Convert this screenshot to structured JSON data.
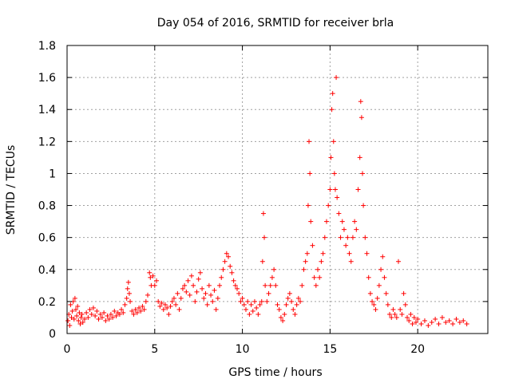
{
  "chart_data": {
    "type": "scatter",
    "title": "Day 054 of 2016, SRMTID for receiver brla",
    "xlabel": "GPS time / hours",
    "ylabel": "SRMTID / TECUs",
    "xlim": [
      0,
      24
    ],
    "ylim": [
      0,
      1.8
    ],
    "xticks": [
      0,
      5,
      10,
      15,
      20
    ],
    "xtick_labels": [
      "0",
      "5",
      "10",
      "15",
      "20"
    ],
    "yticks": [
      0,
      0.2,
      0.4,
      0.6,
      0.8,
      1.0,
      1.2,
      1.4,
      1.6,
      1.8
    ],
    "ytick_labels": [
      "0",
      "0.2",
      "0.4",
      "0.6",
      "0.8",
      "1",
      "1.2",
      "1.4",
      "1.6",
      "1.8"
    ],
    "grid": true,
    "marker": "+",
    "marker_color": "#ff0000",
    "series": [
      {
        "name": "SRMTID",
        "points": [
          [
            0.05,
            0.08
          ],
          [
            0.1,
            0.12
          ],
          [
            0.15,
            0.05
          ],
          [
            0.2,
            0.18
          ],
          [
            0.25,
            0.1
          ],
          [
            0.3,
            0.14
          ],
          [
            0.35,
            0.2
          ],
          [
            0.4,
            0.09
          ],
          [
            0.45,
            0.22
          ],
          [
            0.5,
            0.15
          ],
          [
            0.55,
            0.11
          ],
          [
            0.6,
            0.17
          ],
          [
            0.65,
            0.08
          ],
          [
            0.7,
            0.13
          ],
          [
            0.75,
            0.06
          ],
          [
            0.8,
            0.1
          ],
          [
            0.85,
            0.12
          ],
          [
            0.9,
            0.07
          ],
          [
            1.0,
            0.09
          ],
          [
            1.1,
            0.13
          ],
          [
            1.2,
            0.1
          ],
          [
            1.3,
            0.15
          ],
          [
            1.4,
            0.12
          ],
          [
            1.5,
            0.16
          ],
          [
            1.6,
            0.11
          ],
          [
            1.7,
            0.14
          ],
          [
            1.8,
            0.09
          ],
          [
            1.9,
            0.12
          ],
          [
            2.0,
            0.1
          ],
          [
            2.1,
            0.13
          ],
          [
            2.2,
            0.08
          ],
          [
            2.3,
            0.11
          ],
          [
            2.4,
            0.09
          ],
          [
            2.5,
            0.12
          ],
          [
            2.6,
            0.1
          ],
          [
            2.7,
            0.14
          ],
          [
            2.8,
            0.11
          ],
          [
            2.9,
            0.13
          ],
          [
            3.0,
            0.12
          ],
          [
            3.1,
            0.15
          ],
          [
            3.2,
            0.13
          ],
          [
            3.3,
            0.18
          ],
          [
            3.4,
            0.22
          ],
          [
            3.45,
            0.28
          ],
          [
            3.5,
            0.32
          ],
          [
            3.55,
            0.25
          ],
          [
            3.6,
            0.2
          ],
          [
            3.7,
            0.14
          ],
          [
            3.8,
            0.12
          ],
          [
            3.9,
            0.15
          ],
          [
            4.0,
            0.13
          ],
          [
            4.1,
            0.16
          ],
          [
            4.2,
            0.14
          ],
          [
            4.3,
            0.17
          ],
          [
            4.4,
            0.15
          ],
          [
            4.5,
            0.2
          ],
          [
            4.6,
            0.24
          ],
          [
            4.7,
            0.38
          ],
          [
            4.75,
            0.35
          ],
          [
            4.8,
            0.3
          ],
          [
            4.9,
            0.36
          ],
          [
            5.0,
            0.3
          ],
          [
            5.1,
            0.33
          ],
          [
            5.2,
            0.2
          ],
          [
            5.3,
            0.17
          ],
          [
            5.4,
            0.19
          ],
          [
            5.5,
            0.15
          ],
          [
            5.6,
            0.18
          ],
          [
            5.7,
            0.16
          ],
          [
            5.8,
            0.12
          ],
          [
            5.9,
            0.17
          ],
          [
            6.0,
            0.2
          ],
          [
            6.1,
            0.22
          ],
          [
            6.2,
            0.18
          ],
          [
            6.3,
            0.25
          ],
          [
            6.4,
            0.15
          ],
          [
            6.5,
            0.22
          ],
          [
            6.6,
            0.28
          ],
          [
            6.7,
            0.3
          ],
          [
            6.8,
            0.26
          ],
          [
            6.9,
            0.33
          ],
          [
            7.0,
            0.24
          ],
          [
            7.1,
            0.36
          ],
          [
            7.2,
            0.3
          ],
          [
            7.3,
            0.2
          ],
          [
            7.4,
            0.26
          ],
          [
            7.5,
            0.34
          ],
          [
            7.6,
            0.38
          ],
          [
            7.7,
            0.28
          ],
          [
            7.8,
            0.22
          ],
          [
            7.9,
            0.25
          ],
          [
            8.0,
            0.18
          ],
          [
            8.1,
            0.3
          ],
          [
            8.2,
            0.24
          ],
          [
            8.3,
            0.2
          ],
          [
            8.4,
            0.27
          ],
          [
            8.5,
            0.15
          ],
          [
            8.6,
            0.22
          ],
          [
            8.7,
            0.3
          ],
          [
            8.8,
            0.35
          ],
          [
            8.9,
            0.4
          ],
          [
            9.0,
            0.45
          ],
          [
            9.1,
            0.5
          ],
          [
            9.2,
            0.48
          ],
          [
            9.3,
            0.42
          ],
          [
            9.4,
            0.38
          ],
          [
            9.5,
            0.33
          ],
          [
            9.6,
            0.3
          ],
          [
            9.7,
            0.28
          ],
          [
            9.8,
            0.25
          ],
          [
            9.9,
            0.2
          ],
          [
            10.0,
            0.22
          ],
          [
            10.1,
            0.18
          ],
          [
            10.2,
            0.15
          ],
          [
            10.3,
            0.2
          ],
          [
            10.4,
            0.12
          ],
          [
            10.5,
            0.18
          ],
          [
            10.6,
            0.14
          ],
          [
            10.7,
            0.2
          ],
          [
            10.8,
            0.16
          ],
          [
            10.9,
            0.12
          ],
          [
            11.0,
            0.18
          ],
          [
            11.1,
            0.2
          ],
          [
            11.15,
            0.45
          ],
          [
            11.2,
            0.75
          ],
          [
            11.25,
            0.6
          ],
          [
            11.3,
            0.3
          ],
          [
            11.4,
            0.2
          ],
          [
            11.5,
            0.25
          ],
          [
            11.6,
            0.3
          ],
          [
            11.7,
            0.35
          ],
          [
            11.8,
            0.4
          ],
          [
            11.9,
            0.3
          ],
          [
            12.0,
            0.18
          ],
          [
            12.1,
            0.15
          ],
          [
            12.2,
            0.1
          ],
          [
            12.3,
            0.08
          ],
          [
            12.4,
            0.12
          ],
          [
            12.5,
            0.18
          ],
          [
            12.6,
            0.22
          ],
          [
            12.7,
            0.25
          ],
          [
            12.8,
            0.2
          ],
          [
            12.9,
            0.15
          ],
          [
            13.0,
            0.12
          ],
          [
            13.1,
            0.18
          ],
          [
            13.2,
            0.22
          ],
          [
            13.3,
            0.2
          ],
          [
            13.4,
            0.3
          ],
          [
            13.5,
            0.4
          ],
          [
            13.6,
            0.45
          ],
          [
            13.7,
            0.5
          ],
          [
            13.75,
            0.8
          ],
          [
            13.8,
            1.2
          ],
          [
            13.85,
            1.0
          ],
          [
            13.9,
            0.7
          ],
          [
            14.0,
            0.55
          ],
          [
            14.1,
            0.35
          ],
          [
            14.2,
            0.3
          ],
          [
            14.3,
            0.4
          ],
          [
            14.4,
            0.35
          ],
          [
            14.5,
            0.45
          ],
          [
            14.6,
            0.5
          ],
          [
            14.7,
            0.6
          ],
          [
            14.8,
            0.7
          ],
          [
            14.9,
            0.8
          ],
          [
            15.0,
            0.9
          ],
          [
            15.05,
            1.1
          ],
          [
            15.1,
            1.4
          ],
          [
            15.15,
            1.5
          ],
          [
            15.2,
            1.2
          ],
          [
            15.25,
            1.0
          ],
          [
            15.3,
            0.9
          ],
          [
            15.35,
            1.6
          ],
          [
            15.4,
            0.85
          ],
          [
            15.5,
            0.75
          ],
          [
            15.6,
            0.6
          ],
          [
            15.7,
            0.7
          ],
          [
            15.8,
            0.65
          ],
          [
            15.9,
            0.55
          ],
          [
            16.0,
            0.6
          ],
          [
            16.1,
            0.5
          ],
          [
            16.2,
            0.45
          ],
          [
            16.3,
            0.6
          ],
          [
            16.4,
            0.7
          ],
          [
            16.5,
            0.65
          ],
          [
            16.6,
            0.9
          ],
          [
            16.7,
            1.1
          ],
          [
            16.75,
            1.45
          ],
          [
            16.8,
            1.35
          ],
          [
            16.85,
            1.0
          ],
          [
            16.9,
            0.8
          ],
          [
            17.0,
            0.6
          ],
          [
            17.1,
            0.5
          ],
          [
            17.2,
            0.35
          ],
          [
            17.3,
            0.25
          ],
          [
            17.4,
            0.2
          ],
          [
            17.5,
            0.18
          ],
          [
            17.6,
            0.15
          ],
          [
            17.7,
            0.22
          ],
          [
            17.8,
            0.3
          ],
          [
            17.9,
            0.4
          ],
          [
            18.0,
            0.48
          ],
          [
            18.1,
            0.35
          ],
          [
            18.2,
            0.25
          ],
          [
            18.3,
            0.18
          ],
          [
            18.4,
            0.12
          ],
          [
            18.5,
            0.1
          ],
          [
            18.6,
            0.15
          ],
          [
            18.7,
            0.12
          ],
          [
            18.8,
            0.1
          ],
          [
            18.9,
            0.45
          ],
          [
            19.0,
            0.15
          ],
          [
            19.1,
            0.12
          ],
          [
            19.2,
            0.25
          ],
          [
            19.3,
            0.18
          ],
          [
            19.4,
            0.1
          ],
          [
            19.5,
            0.08
          ],
          [
            19.6,
            0.12
          ],
          [
            19.7,
            0.06
          ],
          [
            19.8,
            0.1
          ],
          [
            19.9,
            0.07
          ],
          [
            20.0,
            0.09
          ],
          [
            20.2,
            0.06
          ],
          [
            20.4,
            0.08
          ],
          [
            20.6,
            0.05
          ],
          [
            20.8,
            0.07
          ],
          [
            21.0,
            0.09
          ],
          [
            21.2,
            0.06
          ],
          [
            21.4,
            0.1
          ],
          [
            21.6,
            0.07
          ],
          [
            21.8,
            0.08
          ],
          [
            22.0,
            0.06
          ],
          [
            22.2,
            0.09
          ],
          [
            22.4,
            0.07
          ],
          [
            22.6,
            0.08
          ],
          [
            22.8,
            0.06
          ]
        ]
      }
    ]
  }
}
